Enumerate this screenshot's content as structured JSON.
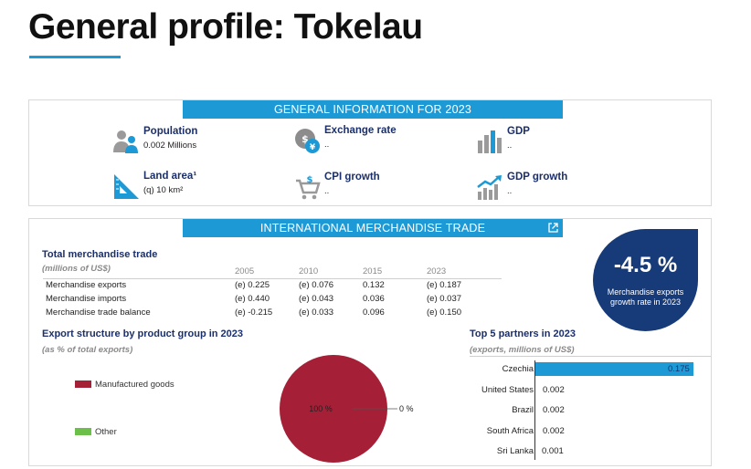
{
  "page": {
    "title": "General profile: Tokelau"
  },
  "general": {
    "header": "GENERAL INFORMATION FOR 2023",
    "items": [
      {
        "icon": "population-icon",
        "label": "Population",
        "value": "0.002 Millions"
      },
      {
        "icon": "exchange-rate-icon",
        "label": "Exchange rate",
        "value": ".."
      },
      {
        "icon": "gdp-icon",
        "label": "GDP",
        "value": ".."
      },
      {
        "icon": "land-area-icon",
        "label": "Land area¹",
        "value": "(q) 10 km²"
      },
      {
        "icon": "cpi-growth-icon",
        "label": "CPI growth",
        "value": ".."
      },
      {
        "icon": "gdp-growth-icon",
        "label": "GDP growth",
        "value": ".."
      }
    ]
  },
  "trade": {
    "header": "INTERNATIONAL MERCHANDISE TRADE",
    "total": {
      "title": "Total merchandise trade",
      "subtitle": "(millions of US$)",
      "years": [
        "2005",
        "2010",
        "2015",
        "2023"
      ],
      "rows": [
        {
          "label": "Merchandise exports",
          "values": [
            "(e) 0.225",
            "(e) 0.076",
            "0.132",
            "(e) 0.187"
          ]
        },
        {
          "label": "Merchandise imports",
          "values": [
            "(e) 0.440",
            "(e) 0.043",
            "0.036",
            "(e) 0.037"
          ]
        },
        {
          "label": "Merchandise trade balance",
          "values": [
            "(e) -0.215",
            "(e) 0.033",
            "0.096",
            "(e) 0.150"
          ]
        }
      ]
    },
    "growth": {
      "value": "-4.5 %",
      "label_line1": "Merchandise exports",
      "label_line2": "growth rate in 2023"
    },
    "export_structure": {
      "title": "Export structure by product group in 2023",
      "subtitle": "(as % of total exports)"
    },
    "partners": {
      "title": "Top 5 partners in 2023",
      "subtitle": "(exports, millions of US$)"
    }
  },
  "colors": {
    "accent": "#1d9ad6",
    "navy": "#173a78",
    "manufactured": "#a51f36",
    "other": "#6cc04a"
  },
  "chart_data": [
    {
      "type": "pie",
      "title": "Export structure by product group in 2023",
      "series": [
        {
          "name": "Manufactured goods",
          "value": 100,
          "label": "100 %",
          "color": "#a51f36"
        },
        {
          "name": "Other",
          "value": 0,
          "label": "0 %",
          "color": "#6cc04a"
        }
      ]
    },
    {
      "type": "bar",
      "title": "Top 5 partners in 2023",
      "categories": [
        "Czechia",
        "United States",
        "Brazil",
        "South Africa",
        "Sri Lanka"
      ],
      "values": [
        0.175,
        0.002,
        0.002,
        0.002,
        0.001
      ],
      "value_labels": [
        "0.175",
        "0.002",
        "0.002",
        "0.002",
        "0.001"
      ],
      "xlim": [
        0,
        0.175
      ]
    }
  ]
}
